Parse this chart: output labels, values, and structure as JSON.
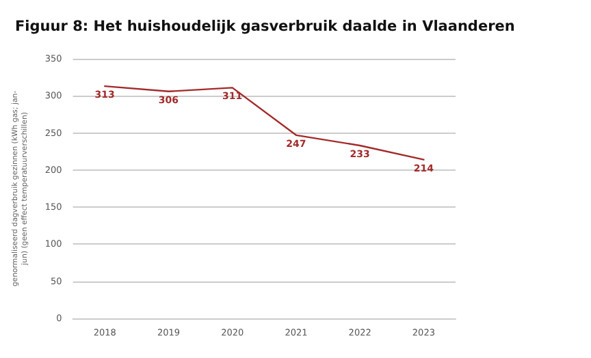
{
  "chart_data": {
    "type": "line",
    "title": "Figuur 8: Het huishoudelijk gasverbruik daalde in Vlaanderen",
    "ylabel": "genormaliseerd dagverbruik gezinnen (kWh gas; jan-jun) (geen effect temperatuurverschillen)",
    "categories": [
      "2018",
      "2019",
      "2020",
      "2021",
      "2022",
      "2023"
    ],
    "series": [
      {
        "color": "#a32a2a",
        "values": [
          313,
          306,
          311,
          247,
          233,
          214
        ]
      }
    ],
    "ylim": [
      0,
      350
    ],
    "yticks": [
      0,
      50,
      100,
      150,
      200,
      250,
      300,
      350
    ],
    "grid": "y",
    "data_labels": true,
    "marker": "none",
    "line_style": "solid"
  }
}
